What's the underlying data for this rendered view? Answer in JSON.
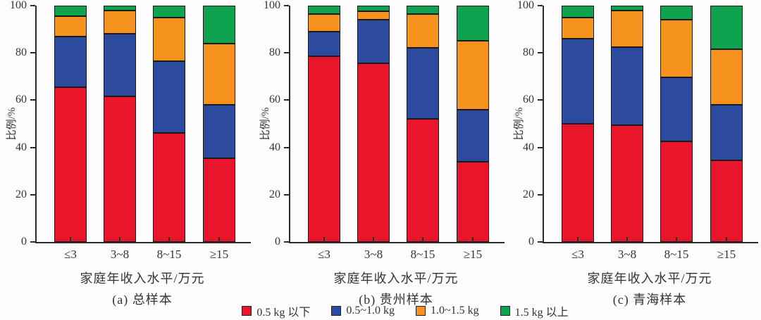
{
  "figure": {
    "background": "#fdfdfd",
    "text_color": "#333333",
    "axis_color": "#2b2b2b",
    "series_colors": {
      "red": "#e8152b",
      "blue": "#2c4a9e",
      "orange": "#f5921e",
      "green": "#0fa24f"
    }
  },
  "chart_data": [
    {
      "type": "bar",
      "stacked": true,
      "title": "(a) 总样本",
      "xlabel": "家庭年收入水平/万元",
      "ylabel": "比例/%",
      "ylim": [
        0,
        100
      ],
      "yticks": [
        0,
        20,
        40,
        60,
        80,
        100
      ],
      "grid": false,
      "legend_position": "bottom",
      "categories": [
        "≤3",
        "3~8",
        "8~15",
        "≥15"
      ],
      "series": [
        {
          "name": "0.5 kg 以下",
          "color": "#e8152b",
          "values": [
            65.5,
            61.5,
            46.0,
            35.5
          ]
        },
        {
          "name": "0.5~1.0 kg",
          "color": "#2c4a9e",
          "values": [
            21.5,
            26.5,
            30.5,
            22.5
          ]
        },
        {
          "name": "1.0~1.5 kg",
          "color": "#f5921e",
          "values": [
            8.5,
            10.0,
            18.5,
            26.0
          ]
        },
        {
          "name": "1.5 kg 以上",
          "color": "#0fa24f",
          "values": [
            4.5,
            2.0,
            5.0,
            16.0
          ]
        }
      ]
    },
    {
      "type": "bar",
      "stacked": true,
      "title": "(b) 贵州样本",
      "xlabel": "家庭年收入水平/万元",
      "ylabel": "比例/%",
      "ylim": [
        0,
        100
      ],
      "yticks": [
        0,
        20,
        40,
        60,
        80,
        100
      ],
      "grid": false,
      "legend_position": "bottom",
      "categories": [
        "≤3",
        "3~8",
        "8~15",
        "≥15"
      ],
      "series": [
        {
          "name": "0.5 kg 以下",
          "color": "#e8152b",
          "values": [
            78.5,
            75.5,
            52.0,
            34.0
          ]
        },
        {
          "name": "0.5~1.0 kg",
          "color": "#2c4a9e",
          "values": [
            10.5,
            18.5,
            30.0,
            22.0
          ]
        },
        {
          "name": "1.0~1.5 kg",
          "color": "#f5921e",
          "values": [
            7.5,
            3.5,
            14.5,
            29.0
          ]
        },
        {
          "name": "1.5 kg 以上",
          "color": "#0fa24f",
          "values": [
            3.5,
            2.5,
            3.5,
            15.0
          ]
        }
      ]
    },
    {
      "type": "bar",
      "stacked": true,
      "title": "(c) 青海样本",
      "xlabel": "家庭年收入水平/万元",
      "ylabel": "比例/%",
      "ylim": [
        0,
        100
      ],
      "yticks": [
        0,
        20,
        40,
        60,
        80,
        100
      ],
      "grid": false,
      "legend_position": "bottom",
      "categories": [
        "≤3",
        "3~8",
        "8~15",
        "≥15"
      ],
      "series": [
        {
          "name": "0.5 kg 以下",
          "color": "#e8152b",
          "values": [
            50.0,
            49.5,
            42.5,
            34.5
          ]
        },
        {
          "name": "0.5~1.0 kg",
          "color": "#2c4a9e",
          "values": [
            36.0,
            33.0,
            27.0,
            23.5
          ]
        },
        {
          "name": "1.0~1.5 kg",
          "color": "#f5921e",
          "values": [
            9.0,
            15.5,
            24.5,
            23.5
          ]
        },
        {
          "name": "1.5 kg 以上",
          "color": "#0fa24f",
          "values": [
            5.0,
            2.0,
            6.0,
            18.5
          ]
        }
      ]
    }
  ]
}
